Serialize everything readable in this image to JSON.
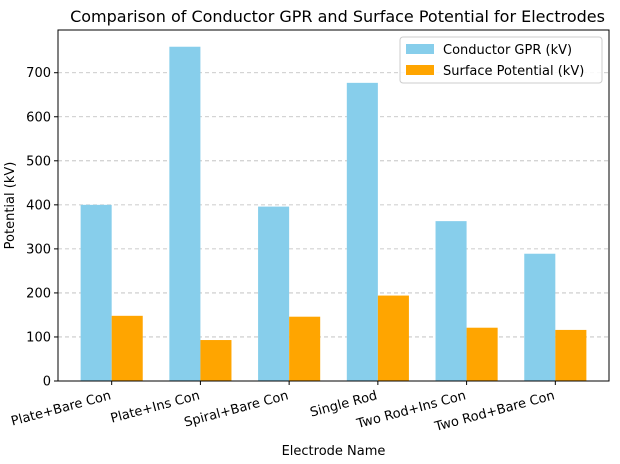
{
  "chart_data": {
    "type": "bar",
    "title": "Comparison of Conductor GPR and Surface Potential for Electrodes",
    "xlabel": "Electrode Name",
    "ylabel": "Potential (kV)",
    "categories": [
      "Plate+Bare Con",
      "Plate+Ins Con",
      "Spiral+Bare Con",
      "Single Rod",
      "Two Rod+Ins Con",
      "Two Rod+Bare Con"
    ],
    "series": [
      {
        "name": "Conductor GPR (kV)",
        "color": "#87CEEB",
        "values": [
          400,
          759,
          396,
          677,
          363,
          289
        ]
      },
      {
        "name": "Surface Potential (kV)",
        "color": "#FFA500",
        "values": [
          148,
          93,
          146,
          194,
          121,
          116
        ]
      }
    ],
    "ylim": [
      0,
      797
    ],
    "yticks": [
      0,
      100,
      200,
      300,
      400,
      500,
      600,
      700
    ],
    "grid": "y-dashed",
    "legend_position": "top-right"
  }
}
